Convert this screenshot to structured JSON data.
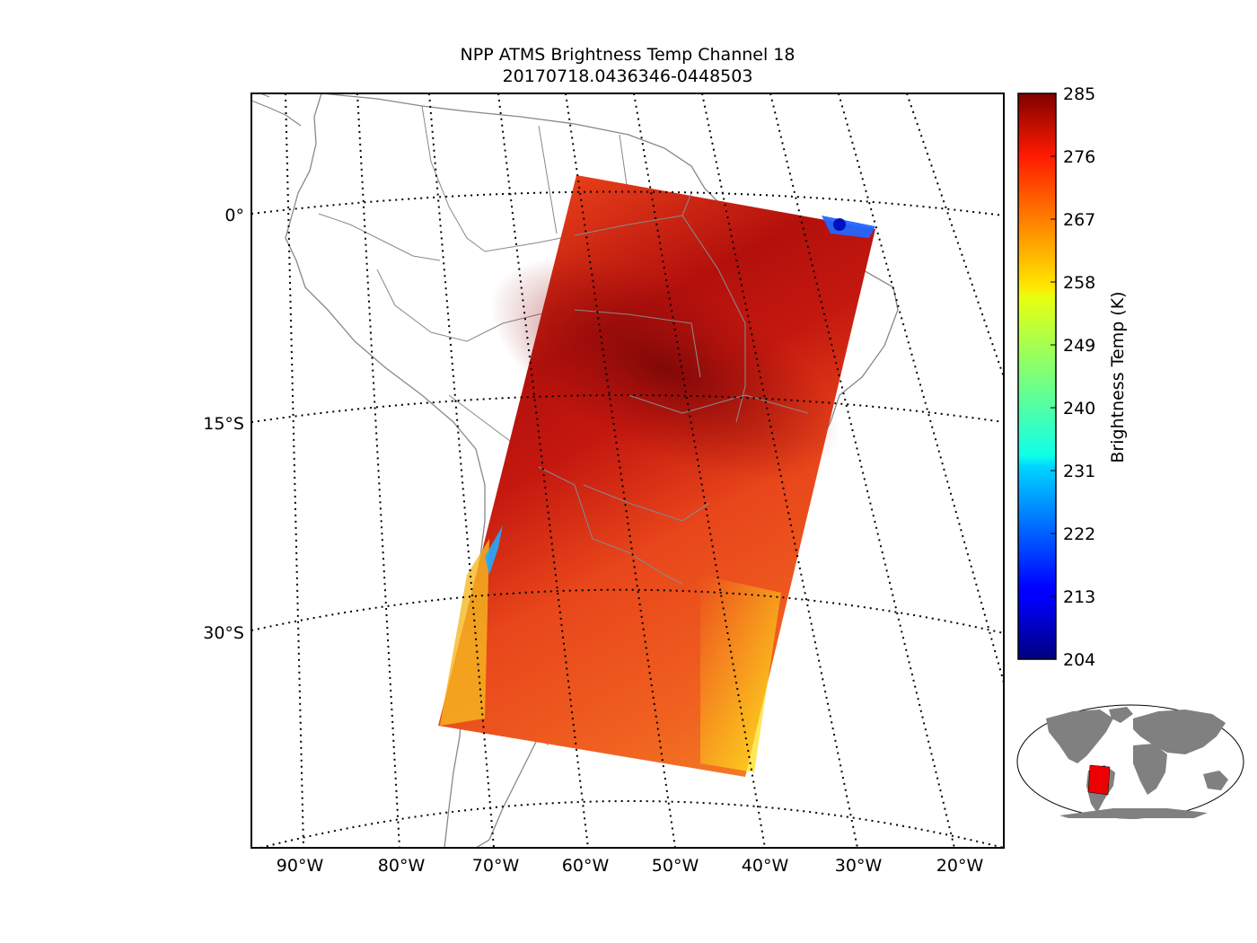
{
  "title": {
    "line1": "NPP ATMS Brightness Temp Channel 18",
    "line2": "20170718.0436346-0448503"
  },
  "map": {
    "lat_labels": [
      "0°",
      "15°S",
      "30°S"
    ],
    "lon_labels": [
      "90°W",
      "80°W",
      "70°W",
      "60°W",
      "50°W",
      "40°W",
      "30°W",
      "20°W"
    ],
    "colors": {
      "coastline": "#888888",
      "gridline": "#000000",
      "swath_land": "#cc1a10",
      "swath_dark": "#8a0a08"
    }
  },
  "colorbar": {
    "label": "Brightness Temp (K)",
    "ticks": [
      "204",
      "213",
      "222",
      "231",
      "240",
      "249",
      "258",
      "267",
      "276",
      "285"
    ],
    "colormap": "jet",
    "range": [
      204,
      285
    ]
  },
  "inset": {
    "colors": {
      "land": "#808080",
      "swath": "#ee0000"
    }
  }
}
